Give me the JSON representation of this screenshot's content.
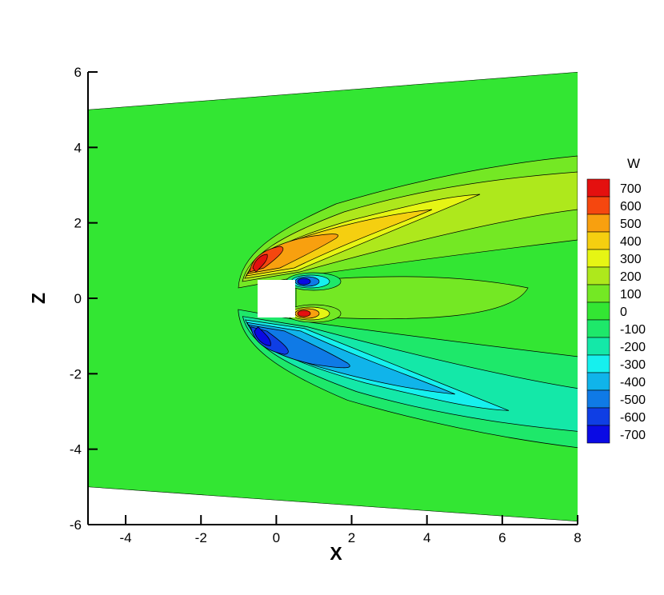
{
  "chart_data": {
    "type": "contour",
    "x_label": "X",
    "y_label": "Z",
    "xlim": [
      -5,
      8
    ],
    "ylim": [
      -6,
      6
    ],
    "xticks": [
      -4,
      -2,
      0,
      2,
      4,
      6,
      8
    ],
    "yticks": [
      -6,
      -4,
      -2,
      0,
      2,
      4,
      6
    ],
    "colorbar": {
      "title": "W",
      "levels": [
        700,
        600,
        500,
        400,
        300,
        200,
        100,
        0,
        -100,
        -200,
        -300,
        -400,
        -500,
        -600,
        -700
      ],
      "colors": [
        "#e4100f",
        "#f5470f",
        "#f8a00f",
        "#f5cf10",
        "#e6f514",
        "#aee81c",
        "#74e824",
        "#33e633",
        "#1ee86a",
        "#14e8a8",
        "#16f0ee",
        "#10b4ea",
        "#0f7ae6",
        "#0f3ee4",
        "#0a0ae4"
      ]
    }
  }
}
